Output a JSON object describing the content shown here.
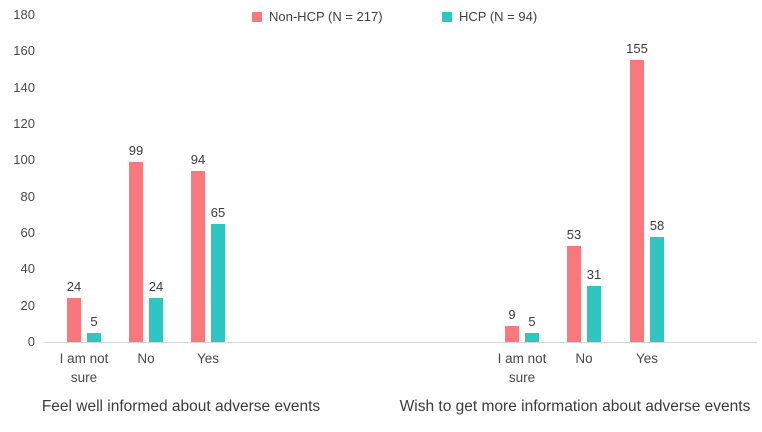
{
  "colors": {
    "non_hcp": "#F8787D",
    "hcp": "#2FC5C0",
    "axis_line": "#D6D6D6",
    "text": "#404040"
  },
  "legend": {
    "items": [
      {
        "label": "Non-HCP (N = 217)",
        "color": "#F8787D"
      },
      {
        "label": "HCP (N = 94)",
        "color": "#2FC5C0"
      }
    ]
  },
  "chart_data": {
    "type": "bar",
    "title": "",
    "ylabel": "",
    "xlabel": "",
    "ylim": [
      0,
      180
    ],
    "yticks": [
      0,
      20,
      40,
      60,
      80,
      100,
      120,
      140,
      160,
      180
    ],
    "grid": false,
    "legend_position": "top-center",
    "data_labels": true,
    "groups": [
      {
        "title": "Feel well informed about adverse events",
        "categories": [
          "I am not sure",
          "No",
          "Yes"
        ],
        "series": [
          {
            "name": "Non-HCP (N = 217)",
            "color": "#F8787D",
            "values": [
              24,
              99,
              94
            ]
          },
          {
            "name": "HCP (N = 94)",
            "color": "#2FC5C0",
            "values": [
              5,
              24,
              65
            ]
          }
        ]
      },
      {
        "title": "Wish to get more information about adverse events",
        "categories": [
          "I am not sure",
          "No",
          "Yes"
        ],
        "series": [
          {
            "name": "Non-HCP (N = 217)",
            "color": "#F8787D",
            "values": [
              9,
              53,
              155
            ]
          },
          {
            "name": "HCP (N = 94)",
            "color": "#2FC5C0",
            "values": [
              5,
              31,
              58
            ]
          }
        ]
      }
    ]
  }
}
